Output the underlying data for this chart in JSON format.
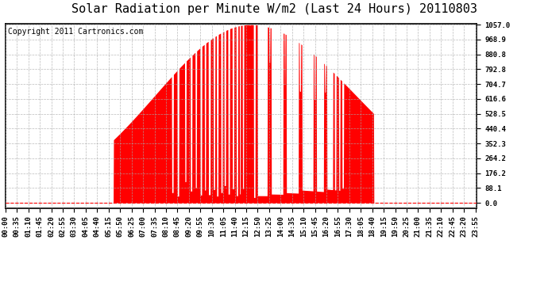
{
  "title": "Solar Radiation per Minute W/m2 (Last 24 Hours) 20110803",
  "copyright": "Copyright 2011 Cartronics.com",
  "y_max": 1057.0,
  "y_min": 0.0,
  "y_ticks": [
    0.0,
    88.1,
    176.2,
    264.2,
    352.3,
    440.4,
    528.5,
    616.6,
    704.7,
    792.8,
    880.8,
    968.9,
    1057.0
  ],
  "bar_color": "#FF0000",
  "dashed_line_color": "#FF0000",
  "background_color": "#FFFFFF",
  "grid_color": "#AAAAAA",
  "title_fontsize": 11,
  "copyright_fontsize": 7,
  "tick_fontsize": 6.5,
  "x_tick_interval_minutes": 35
}
